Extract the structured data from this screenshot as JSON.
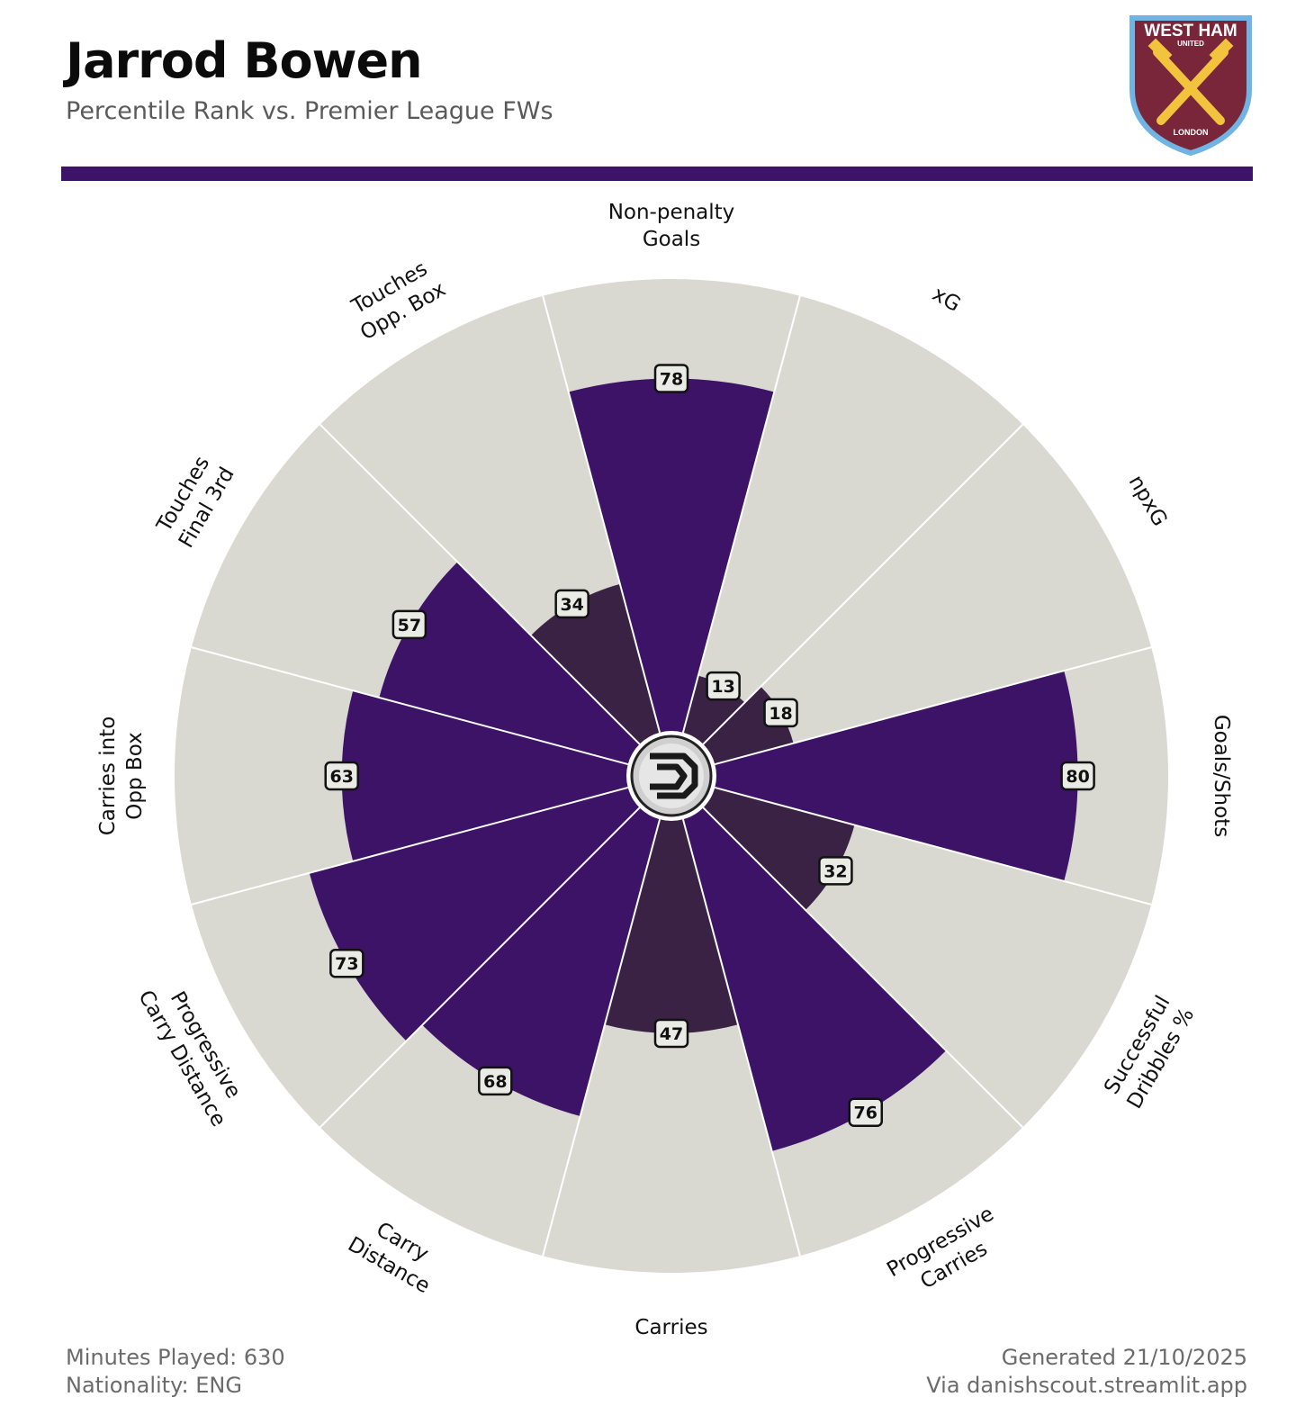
{
  "header": {
    "title": "Jarrod Bowen",
    "subtitle": "Percentile Rank vs. Premier League FWs"
  },
  "crest": {
    "name_line1": "WEST HAM",
    "name_line2": "UNITED",
    "city": "LONDON"
  },
  "colors": {
    "accent": "#3d1368",
    "bar_high": "#3d1368",
    "bar_low": "#3a2245",
    "background_slice": "#d9d9d2",
    "divider": "#3d1368"
  },
  "chart_data": {
    "type": "polar-bar",
    "range": [
      0,
      100
    ],
    "center_logo": "danishscout-logo",
    "metrics": [
      {
        "label": [
          "Non-penalty",
          "Goals"
        ],
        "value": 78
      },
      {
        "label": [
          "xG"
        ],
        "value": 13
      },
      {
        "label": [
          "npxG"
        ],
        "value": 18
      },
      {
        "label": [
          "Goals/Shots"
        ],
        "value": 80
      },
      {
        "label": [
          "Successful",
          "Dribbles %"
        ],
        "value": 32
      },
      {
        "label": [
          "Progressive",
          "Carries"
        ],
        "value": 76
      },
      {
        "label": [
          "Carries"
        ],
        "value": 47
      },
      {
        "label": [
          "Carry",
          "Distance"
        ],
        "value": 68
      },
      {
        "label": [
          "Progressive",
          "Carry Distance"
        ],
        "value": 73
      },
      {
        "label": [
          "Carries into",
          "Opp Box"
        ],
        "value": 63
      },
      {
        "label": [
          "Touches",
          "Final 3rd"
        ],
        "value": 57
      },
      {
        "label": [
          "Touches",
          "Opp. Box"
        ],
        "value": 34
      }
    ]
  },
  "footer": {
    "minutes": "Minutes Played: 630",
    "nationality": "Nationality: ENG",
    "generated": "Generated 21/10/2025",
    "source": "Via danishscout.streamlit.app"
  }
}
